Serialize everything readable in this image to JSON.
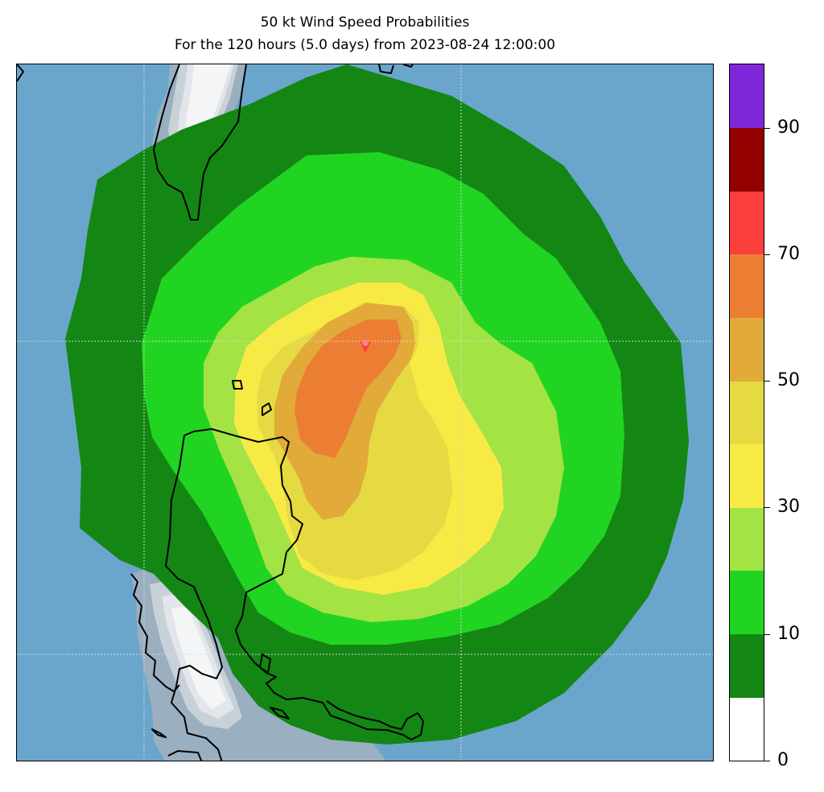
{
  "title": {
    "line1": "50 kt Wind Speed Probabilities",
    "line2": "For the 120 hours (5.0 days) from 2023-08-24 12:00:00"
  },
  "map": {
    "ocean_color": "#6aa6cc",
    "land_shades": [
      "#9aafbf",
      "#c8d0d8",
      "#e2e6ea",
      "#f3f5f7"
    ],
    "gridline_color": "#d8d8d8",
    "storm_marker_color": "#ff3b3b"
  },
  "colorbar": {
    "levels": [
      {
        "from": 0,
        "to": 5,
        "color": "#ffffff"
      },
      {
        "from": 5,
        "to": 10,
        "color": "#148614"
      },
      {
        "from": 10,
        "to": 20,
        "color": "#22d422"
      },
      {
        "from": 20,
        "to": 30,
        "color": "#a3e344"
      },
      {
        "from": 30,
        "to": 40,
        "color": "#f8ea45"
      },
      {
        "from": 40,
        "to": 50,
        "color": "#e5da42"
      },
      {
        "from": 50,
        "to": 60,
        "color": "#e2aa38"
      },
      {
        "from": 60,
        "to": 70,
        "color": "#ec7e34"
      },
      {
        "from": 70,
        "to": 80,
        "color": "#fa3e3e"
      },
      {
        "from": 80,
        "to": 90,
        "color": "#920000"
      },
      {
        "from": 90,
        "to": 100,
        "color": "#7e27d9"
      }
    ],
    "ticks": [
      "0",
      "10",
      "30",
      "50",
      "70",
      "90"
    ]
  }
}
